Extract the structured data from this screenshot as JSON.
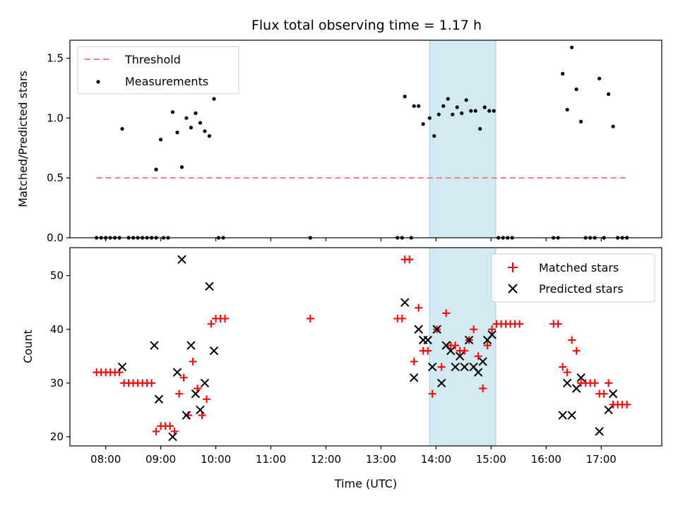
{
  "chart_data": [
    {
      "type": "scatter",
      "title": "Flux total observing time = 1.17 h",
      "xlabel": "",
      "ylabel": "Matched/Predicted stars",
      "ylim": [
        0,
        1.65
      ],
      "yticks": [
        "0.0",
        "0.5",
        "1.0",
        "1.5"
      ],
      "xlim_hours": [
        7.35,
        18.1
      ],
      "highlight_span": [
        "13:53",
        "15:05"
      ],
      "threshold": {
        "name": "Threshold",
        "y": 0.5,
        "x_range": [
          "07:50",
          "17:30"
        ],
        "color": "#f08080"
      },
      "legend": {
        "placement": "top-left"
      },
      "series": [
        {
          "name": "Measurements",
          "color": "#000000",
          "points": [
            [
              "07:50",
              0
            ],
            [
              "07:55",
              0
            ],
            [
              "08:00",
              0
            ],
            [
              "08:05",
              0
            ],
            [
              "08:10",
              0
            ],
            [
              "08:15",
              0
            ],
            [
              "08:25",
              0
            ],
            [
              "08:30",
              0
            ],
            [
              "08:35",
              0
            ],
            [
              "08:40",
              0
            ],
            [
              "08:45",
              0
            ],
            [
              "08:50",
              0
            ],
            [
              "08:55",
              0
            ],
            [
              "08:18",
              0.91
            ],
            [
              "08:55",
              0.57
            ],
            [
              "09:00",
              0.82
            ],
            [
              "09:03",
              0
            ],
            [
              "09:08",
              0
            ],
            [
              "09:13",
              1.05
            ],
            [
              "09:18",
              0.88
            ],
            [
              "09:23",
              0.59
            ],
            [
              "09:28",
              1.0
            ],
            [
              "09:33",
              0.92
            ],
            [
              "09:38",
              1.04
            ],
            [
              "09:43",
              0.96
            ],
            [
              "09:48",
              0.89
            ],
            [
              "09:53",
              0.85
            ],
            [
              "09:58",
              1.16
            ],
            [
              "10:03",
              0
            ],
            [
              "10:08",
              0
            ],
            [
              "11:43",
              0
            ],
            [
              "13:18",
              0
            ],
            [
              "13:23",
              0
            ],
            [
              "13:26",
              1.18
            ],
            [
              "13:33",
              0
            ],
            [
              "13:36",
              1.1
            ],
            [
              "13:41",
              1.1
            ],
            [
              "13:46",
              0.95
            ],
            [
              "13:53",
              1.0
            ],
            [
              "13:58",
              0.85
            ],
            [
              "14:03",
              1.03
            ],
            [
              "14:08",
              1.1
            ],
            [
              "14:13",
              1.16
            ],
            [
              "14:18",
              1.03
            ],
            [
              "14:23",
              1.09
            ],
            [
              "14:28",
              1.04
            ],
            [
              "14:33",
              1.15
            ],
            [
              "14:38",
              1.06
            ],
            [
              "14:43",
              1.06
            ],
            [
              "14:48",
              0.91
            ],
            [
              "14:53",
              1.09
            ],
            [
              "14:58",
              1.06
            ],
            [
              "15:03",
              1.06
            ],
            [
              "15:08",
              0
            ],
            [
              "15:13",
              0
            ],
            [
              "15:18",
              0
            ],
            [
              "15:23",
              0
            ],
            [
              "16:08",
              0
            ],
            [
              "16:13",
              0
            ],
            [
              "16:18",
              1.37
            ],
            [
              "16:23",
              1.07
            ],
            [
              "16:28",
              1.59
            ],
            [
              "16:33",
              1.24
            ],
            [
              "16:38",
              0.97
            ],
            [
              "16:43",
              0
            ],
            [
              "16:48",
              0
            ],
            [
              "16:53",
              0
            ],
            [
              "16:58",
              1.33
            ],
            [
              "17:03",
              0
            ],
            [
              "17:08",
              1.2
            ],
            [
              "17:13",
              0.93
            ],
            [
              "17:18",
              0
            ],
            [
              "17:23",
              0
            ],
            [
              "17:28",
              0
            ]
          ]
        }
      ]
    },
    {
      "type": "scatter",
      "title": "",
      "xlabel": "Time (UTC)",
      "ylabel": "Count",
      "ylim": [
        18.3,
        55.2
      ],
      "yticks": [
        "20",
        "30",
        "40",
        "50"
      ],
      "xticks": [
        "08:00",
        "09:00",
        "10:00",
        "11:00",
        "12:00",
        "13:00",
        "14:00",
        "15:00",
        "16:00",
        "17:00"
      ],
      "xlim_hours": [
        7.35,
        18.1
      ],
      "highlight_span": [
        "13:53",
        "15:05"
      ],
      "legend": {
        "placement": "top-right"
      },
      "series": [
        {
          "name": "Matched stars",
          "marker": "plus",
          "color": "#ff0000",
          "points": [
            [
              "07:50",
              32
            ],
            [
              "07:55",
              32
            ],
            [
              "08:00",
              32
            ],
            [
              "08:05",
              32
            ],
            [
              "08:10",
              32
            ],
            [
              "08:15",
              32
            ],
            [
              "08:20",
              30
            ],
            [
              "08:25",
              30
            ],
            [
              "08:30",
              30
            ],
            [
              "08:35",
              30
            ],
            [
              "08:40",
              30
            ],
            [
              "08:45",
              30
            ],
            [
              "08:50",
              30
            ],
            [
              "08:55",
              21
            ],
            [
              "09:00",
              22
            ],
            [
              "09:05",
              22
            ],
            [
              "09:10",
              22
            ],
            [
              "09:15",
              21
            ],
            [
              "09:20",
              28
            ],
            [
              "09:25",
              31
            ],
            [
              "09:30",
              24
            ],
            [
              "09:35",
              34
            ],
            [
              "09:40",
              29
            ],
            [
              "09:45",
              24
            ],
            [
              "09:50",
              27
            ],
            [
              "09:55",
              41
            ],
            [
              "10:00",
              42
            ],
            [
              "10:05",
              42
            ],
            [
              "10:10",
              42
            ],
            [
              "11:43",
              42
            ],
            [
              "13:18",
              42
            ],
            [
              "13:23",
              42
            ],
            [
              "13:26",
              53
            ],
            [
              "13:31",
              53
            ],
            [
              "13:36",
              34
            ],
            [
              "13:41",
              44
            ],
            [
              "13:46",
              36
            ],
            [
              "13:51",
              36
            ],
            [
              "13:56",
              28
            ],
            [
              "14:01",
              40
            ],
            [
              "14:06",
              33
            ],
            [
              "14:11",
              43
            ],
            [
              "14:16",
              37
            ],
            [
              "14:21",
              37
            ],
            [
              "14:26",
              36
            ],
            [
              "14:31",
              36
            ],
            [
              "14:36",
              38
            ],
            [
              "14:41",
              40
            ],
            [
              "14:46",
              35
            ],
            [
              "14:51",
              29
            ],
            [
              "14:56",
              37
            ],
            [
              "15:01",
              40
            ],
            [
              "15:06",
              41
            ],
            [
              "15:11",
              41
            ],
            [
              "15:16",
              41
            ],
            [
              "15:21",
              41
            ],
            [
              "15:26",
              41
            ],
            [
              "15:31",
              41
            ],
            [
              "16:08",
              41
            ],
            [
              "16:13",
              41
            ],
            [
              "16:18",
              33
            ],
            [
              "16:23",
              32
            ],
            [
              "16:28",
              38
            ],
            [
              "16:33",
              36
            ],
            [
              "16:38",
              30
            ],
            [
              "16:43",
              30
            ],
            [
              "16:48",
              30
            ],
            [
              "16:53",
              30
            ],
            [
              "16:58",
              28
            ],
            [
              "17:03",
              28
            ],
            [
              "17:08",
              30
            ],
            [
              "17:13",
              26
            ],
            [
              "17:18",
              26
            ],
            [
              "17:23",
              26
            ],
            [
              "17:28",
              26
            ]
          ]
        },
        {
          "name": "Predicted stars",
          "marker": "x",
          "color": "#000000",
          "points": [
            [
              "08:18",
              33
            ],
            [
              "08:53",
              37
            ],
            [
              "08:58",
              27
            ],
            [
              "09:13",
              20
            ],
            [
              "09:18",
              32
            ],
            [
              "09:23",
              53
            ],
            [
              "09:28",
              24
            ],
            [
              "09:33",
              37
            ],
            [
              "09:38",
              28
            ],
            [
              "09:43",
              25
            ],
            [
              "09:48",
              30
            ],
            [
              "09:53",
              48
            ],
            [
              "09:58",
              36
            ],
            [
              "13:26",
              45
            ],
            [
              "13:36",
              31
            ],
            [
              "13:41",
              40
            ],
            [
              "13:46",
              38
            ],
            [
              "13:51",
              38
            ],
            [
              "13:56",
              33
            ],
            [
              "14:01",
              40
            ],
            [
              "14:06",
              30
            ],
            [
              "14:11",
              37
            ],
            [
              "14:16",
              36
            ],
            [
              "14:21",
              33
            ],
            [
              "14:26",
              35
            ],
            [
              "14:31",
              33
            ],
            [
              "14:36",
              38
            ],
            [
              "14:41",
              33
            ],
            [
              "14:46",
              32
            ],
            [
              "14:51",
              34
            ],
            [
              "14:56",
              38
            ],
            [
              "15:01",
              39
            ],
            [
              "16:18",
              24
            ],
            [
              "16:23",
              30
            ],
            [
              "16:28",
              24
            ],
            [
              "16:33",
              29
            ],
            [
              "16:38",
              31
            ],
            [
              "16:58",
              21
            ],
            [
              "17:08",
              25
            ],
            [
              "17:13",
              28
            ]
          ]
        }
      ]
    }
  ]
}
